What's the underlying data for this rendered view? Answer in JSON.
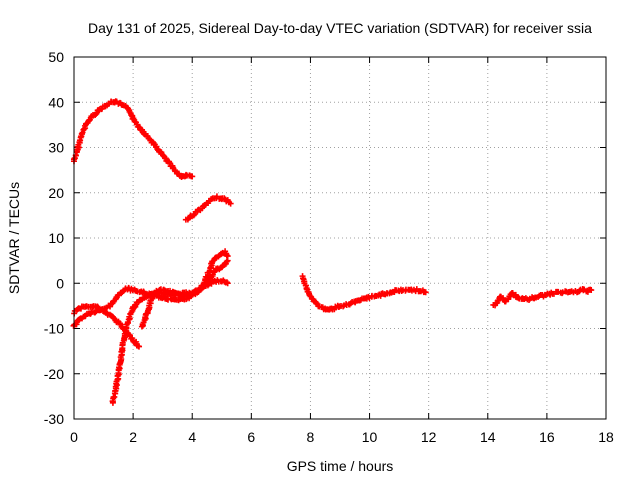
{
  "chart_data": {
    "type": "scatter",
    "title": "Day 131 of 2025, Sidereal Day-to-day VTEC variation (SDTVAR) for receiver ssia",
    "xlabel": "GPS time / hours",
    "ylabel": "SDTVAR / TECUs",
    "xlim": [
      0,
      18
    ],
    "ylim": [
      -30,
      50
    ],
    "xticks": [
      0,
      2,
      4,
      6,
      8,
      10,
      12,
      14,
      16,
      18
    ],
    "yticks": [
      -30,
      -20,
      -10,
      0,
      10,
      20,
      30,
      40,
      50
    ],
    "grid": true,
    "marker": "+",
    "color": "#ff0000",
    "series": [
      {
        "name": "arc-1",
        "points": [
          [
            0.0,
            27
          ],
          [
            0.1,
            29
          ],
          [
            0.2,
            31.5
          ],
          [
            0.3,
            33.5
          ],
          [
            0.45,
            35.5
          ],
          [
            0.6,
            36.8
          ],
          [
            0.8,
            38
          ],
          [
            1.0,
            39
          ],
          [
            1.2,
            39.8
          ],
          [
            1.35,
            40.2
          ],
          [
            1.5,
            39.8
          ],
          [
            1.7,
            39.2
          ],
          [
            1.9,
            38
          ],
          [
            2.0,
            36.5
          ],
          [
            2.2,
            34.5
          ],
          [
            2.4,
            33
          ],
          [
            2.6,
            31.5
          ],
          [
            2.8,
            30
          ],
          [
            3.0,
            28.3
          ],
          [
            3.2,
            26.7
          ],
          [
            3.4,
            25
          ],
          [
            3.6,
            23.8
          ],
          [
            3.7,
            23.5
          ],
          [
            3.8,
            24
          ],
          [
            4.0,
            23.6
          ]
        ]
      },
      {
        "name": "arc-2",
        "points": [
          [
            3.8,
            14
          ],
          [
            4.0,
            15
          ],
          [
            4.2,
            16
          ],
          [
            4.4,
            17
          ],
          [
            4.6,
            18.2
          ],
          [
            4.8,
            19
          ],
          [
            5.0,
            18.8
          ],
          [
            5.2,
            18.2
          ],
          [
            5.3,
            17.6
          ]
        ]
      },
      {
        "name": "arc-3",
        "points": [
          [
            0.0,
            -9.5
          ],
          [
            0.2,
            -8
          ],
          [
            0.4,
            -7
          ],
          [
            0.6,
            -6.5
          ],
          [
            0.9,
            -6
          ],
          [
            1.2,
            -5
          ],
          [
            1.4,
            -3.5
          ],
          [
            1.6,
            -2
          ],
          [
            1.8,
            -1.2
          ],
          [
            2.0,
            -1.5
          ],
          [
            2.3,
            -2
          ],
          [
            2.6,
            -2.5
          ],
          [
            2.9,
            -3
          ],
          [
            3.2,
            -3.5
          ],
          [
            3.5,
            -3.8
          ],
          [
            3.8,
            -3.5
          ],
          [
            4.0,
            -2.5
          ],
          [
            4.2,
            -1.5
          ],
          [
            4.4,
            -0.5
          ],
          [
            4.6,
            1
          ],
          [
            4.7,
            2
          ],
          [
            4.8,
            3
          ],
          [
            5.0,
            3.5
          ],
          [
            5.1,
            4
          ],
          [
            5.2,
            5
          ]
        ]
      },
      {
        "name": "arc-4",
        "points": [
          [
            0.0,
            -6.5
          ],
          [
            0.2,
            -5.5
          ],
          [
            0.4,
            -5
          ],
          [
            0.6,
            -5
          ],
          [
            0.8,
            -5.3
          ],
          [
            0.9,
            -5.8
          ],
          [
            1.0,
            -6.3
          ],
          [
            1.2,
            -7
          ],
          [
            1.4,
            -8
          ],
          [
            1.6,
            -9.5
          ],
          [
            1.8,
            -11
          ],
          [
            2.0,
            -12.5
          ],
          [
            2.2,
            -14
          ]
        ]
      },
      {
        "name": "arc-5",
        "points": [
          [
            1.3,
            -26.5
          ],
          [
            1.4,
            -24
          ],
          [
            1.5,
            -20
          ],
          [
            1.6,
            -16
          ],
          [
            1.7,
            -12
          ],
          [
            1.8,
            -9
          ],
          [
            1.9,
            -7
          ],
          [
            2.0,
            -5.5
          ],
          [
            2.2,
            -4
          ],
          [
            2.4,
            -3
          ],
          [
            2.6,
            -2.5
          ],
          [
            2.8,
            -2
          ],
          [
            3.0,
            -2.2
          ],
          [
            3.2,
            -2.5
          ],
          [
            3.4,
            -2.5
          ],
          [
            3.6,
            -2.3
          ],
          [
            3.8,
            -2.2
          ],
          [
            4.0,
            -2
          ],
          [
            4.2,
            -1.5
          ],
          [
            4.4,
            -1
          ],
          [
            4.6,
            0
          ],
          [
            4.8,
            0.5
          ],
          [
            5.0,
            0.5
          ],
          [
            5.2,
            0
          ]
        ]
      },
      {
        "name": "arc-6",
        "points": [
          [
            2.3,
            -9.5
          ],
          [
            2.4,
            -8
          ],
          [
            2.5,
            -6
          ],
          [
            2.6,
            -4
          ],
          [
            2.7,
            -2.5
          ],
          [
            2.8,
            -1.8
          ],
          [
            3.0,
            -1.5
          ],
          [
            3.2,
            -1.8
          ],
          [
            3.4,
            -2.2
          ],
          [
            3.6,
            -2.5
          ],
          [
            3.8,
            -2.8
          ],
          [
            4.0,
            -2.5
          ],
          [
            4.2,
            -2
          ],
          [
            4.4,
            0
          ],
          [
            4.6,
            3
          ],
          [
            4.7,
            5
          ],
          [
            4.8,
            5.5
          ],
          [
            5.0,
            6.5
          ],
          [
            5.1,
            7
          ],
          [
            5.2,
            6
          ]
        ]
      },
      {
        "name": "arc-7",
        "points": [
          [
            7.75,
            1.5
          ],
          [
            7.85,
            -1
          ],
          [
            8.0,
            -3
          ],
          [
            8.2,
            -4.5
          ],
          [
            8.4,
            -5.5
          ],
          [
            8.6,
            -6
          ],
          [
            8.8,
            -5.5
          ],
          [
            9.0,
            -5
          ],
          [
            9.2,
            -4.8
          ],
          [
            9.5,
            -4.2
          ],
          [
            9.8,
            -3.5
          ],
          [
            10.1,
            -3
          ],
          [
            10.4,
            -2.5
          ],
          [
            10.7,
            -2
          ],
          [
            11.0,
            -1.6
          ],
          [
            11.3,
            -1.5
          ],
          [
            11.6,
            -1.5
          ],
          [
            11.8,
            -1.8
          ],
          [
            11.9,
            -2
          ]
        ]
      },
      {
        "name": "arc-8",
        "points": [
          [
            14.2,
            -5
          ],
          [
            14.3,
            -4.5
          ],
          [
            14.4,
            -3
          ],
          [
            14.5,
            -3.5
          ],
          [
            14.6,
            -4
          ],
          [
            14.7,
            -3.5
          ],
          [
            14.8,
            -2
          ],
          [
            14.9,
            -2.5
          ],
          [
            15.0,
            -3
          ],
          [
            15.2,
            -3.5
          ],
          [
            15.4,
            -3.5
          ],
          [
            15.6,
            -3
          ],
          [
            15.8,
            -2.8
          ],
          [
            16.0,
            -2.5
          ],
          [
            16.2,
            -2.2
          ],
          [
            16.4,
            -2
          ],
          [
            16.6,
            -2
          ],
          [
            16.8,
            -1.8
          ],
          [
            17.0,
            -1.8
          ],
          [
            17.2,
            -1.5
          ],
          [
            17.4,
            -1.8
          ],
          [
            17.5,
            -1.5
          ]
        ]
      }
    ]
  }
}
